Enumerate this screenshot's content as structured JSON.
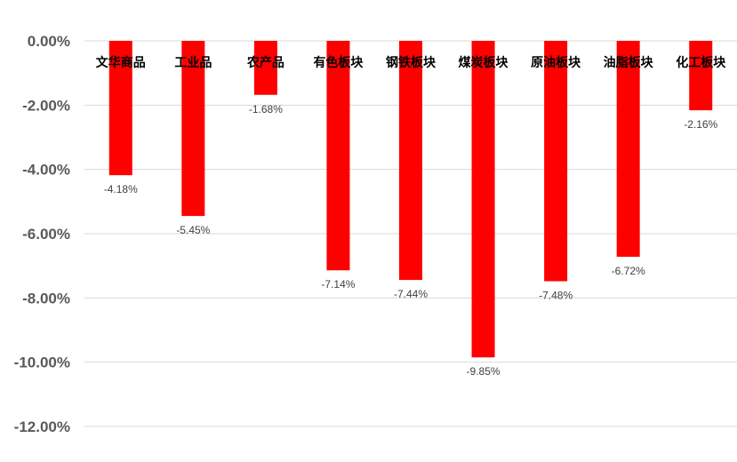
{
  "chart_data": {
    "type": "bar",
    "categories": [
      "文华商品",
      "工业品",
      "农产品",
      "有色板块",
      "钢铁板块",
      "煤炭板块",
      "原油板块",
      "油脂板块",
      "化工板块"
    ],
    "values": [
      -4.18,
      -5.45,
      -1.68,
      -7.14,
      -7.44,
      -9.85,
      -7.48,
      -6.72,
      -2.16
    ],
    "data_labels": [
      "-4.18%",
      "-5.45%",
      "-1.68%",
      "-7.14%",
      "-7.44%",
      "-9.85%",
      "-7.48%",
      "-6.72%",
      "-2.16%"
    ],
    "y_ticks": [
      0,
      -2,
      -4,
      -6,
      -8,
      -10,
      -12
    ],
    "y_tick_labels": [
      "0.00%",
      "-2.00%",
      "-4.00%",
      "-6.00%",
      "-8.00%",
      "-10.00%",
      "-12.00%"
    ],
    "ylim": [
      -12,
      0
    ],
    "grid": true,
    "legend": "none",
    "title": "",
    "xlabel": "",
    "ylabel": "",
    "colors": {
      "bar": "#FF0000",
      "grid": "#D9D9D9",
      "axis_text": "#595959",
      "category_text": "#000000",
      "data_label_text": "#404040"
    }
  }
}
